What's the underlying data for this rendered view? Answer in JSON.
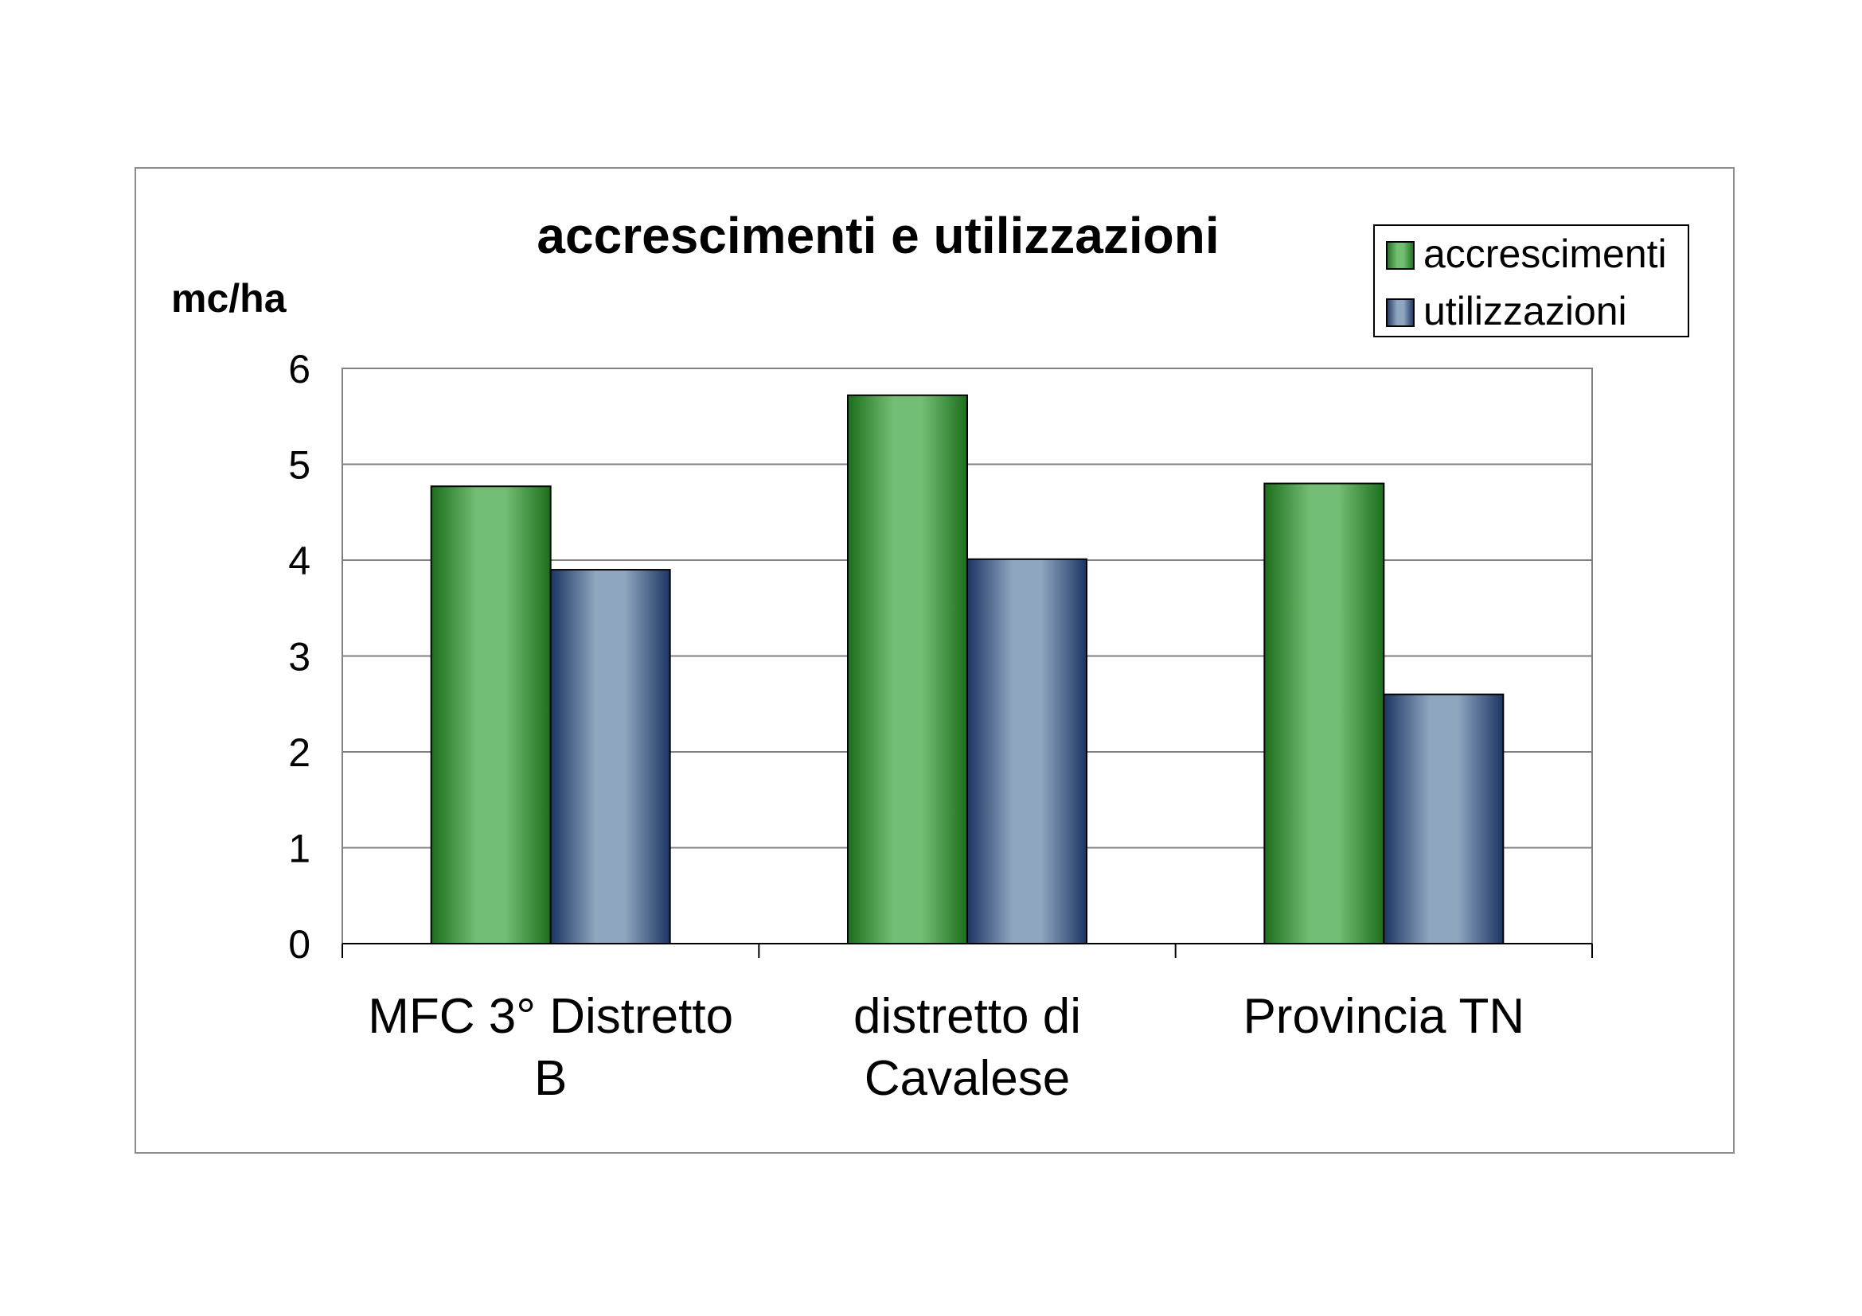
{
  "chart_data": {
    "type": "bar",
    "title": "accrescimenti e utilizzazioni",
    "ylabel": "mc/ha",
    "xlabel": "",
    "categories": [
      [
        "MFC 3° Distretto",
        "B"
      ],
      [
        "distretto di",
        "Cavalese"
      ],
      [
        "Provincia TN"
      ]
    ],
    "series": [
      {
        "name": "accrescimenti",
        "values": [
          4.77,
          5.72,
          4.8
        ]
      },
      {
        "name": "utilizzazioni",
        "values": [
          3.9,
          4.01,
          2.6
        ]
      }
    ],
    "ylim": [
      0,
      6
    ],
    "yticks": [
      0,
      1,
      2,
      3,
      4,
      5,
      6
    ],
    "grid": true,
    "legend": "top-right",
    "colors": {
      "accrescimenti": {
        "edge": "#1c6e1c",
        "light": "#74bd74",
        "stroke": "#000000"
      },
      "utilizzazioni": {
        "edge": "#1b3563",
        "light": "#8fa6bf",
        "stroke": "#000000"
      },
      "grid": "#808080",
      "frame": "#8c8c8c"
    }
  }
}
